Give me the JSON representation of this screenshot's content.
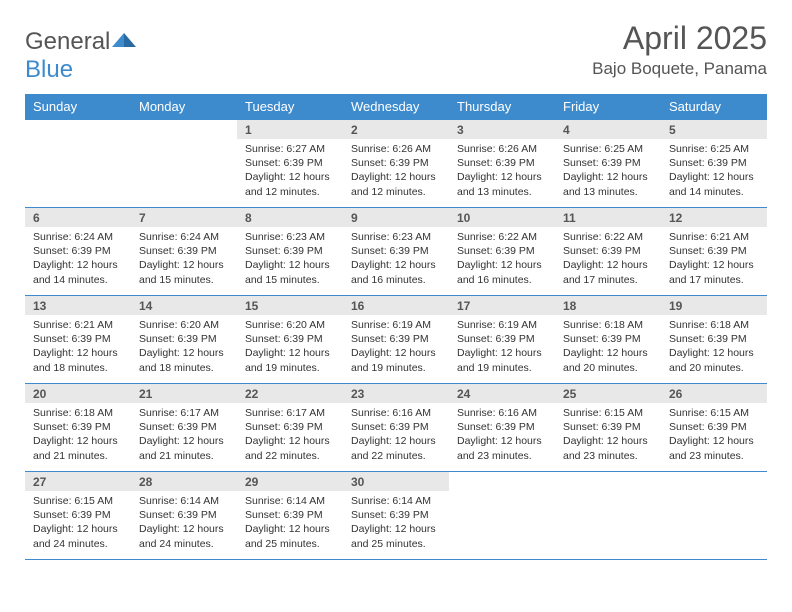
{
  "logo": {
    "text_gray": "General",
    "text_blue": "Blue"
  },
  "title": "April 2025",
  "location": "Bajo Boquete, Panama",
  "colors": {
    "accent": "#3d8bcd",
    "header_text": "#ffffff",
    "day_bg": "#e8e8e8",
    "body_text": "#333333",
    "title_text": "#555555",
    "background": "#ffffff"
  },
  "calendar": {
    "columns": [
      "Sunday",
      "Monday",
      "Tuesday",
      "Wednesday",
      "Thursday",
      "Friday",
      "Saturday"
    ],
    "leading_blanks": 2,
    "days": [
      {
        "n": 1,
        "sr": "6:27 AM",
        "ss": "6:39 PM",
        "dl": "12 hours and 12 minutes."
      },
      {
        "n": 2,
        "sr": "6:26 AM",
        "ss": "6:39 PM",
        "dl": "12 hours and 12 minutes."
      },
      {
        "n": 3,
        "sr": "6:26 AM",
        "ss": "6:39 PM",
        "dl": "12 hours and 13 minutes."
      },
      {
        "n": 4,
        "sr": "6:25 AM",
        "ss": "6:39 PM",
        "dl": "12 hours and 13 minutes."
      },
      {
        "n": 5,
        "sr": "6:25 AM",
        "ss": "6:39 PM",
        "dl": "12 hours and 14 minutes."
      },
      {
        "n": 6,
        "sr": "6:24 AM",
        "ss": "6:39 PM",
        "dl": "12 hours and 14 minutes."
      },
      {
        "n": 7,
        "sr": "6:24 AM",
        "ss": "6:39 PM",
        "dl": "12 hours and 15 minutes."
      },
      {
        "n": 8,
        "sr": "6:23 AM",
        "ss": "6:39 PM",
        "dl": "12 hours and 15 minutes."
      },
      {
        "n": 9,
        "sr": "6:23 AM",
        "ss": "6:39 PM",
        "dl": "12 hours and 16 minutes."
      },
      {
        "n": 10,
        "sr": "6:22 AM",
        "ss": "6:39 PM",
        "dl": "12 hours and 16 minutes."
      },
      {
        "n": 11,
        "sr": "6:22 AM",
        "ss": "6:39 PM",
        "dl": "12 hours and 17 minutes."
      },
      {
        "n": 12,
        "sr": "6:21 AM",
        "ss": "6:39 PM",
        "dl": "12 hours and 17 minutes."
      },
      {
        "n": 13,
        "sr": "6:21 AM",
        "ss": "6:39 PM",
        "dl": "12 hours and 18 minutes."
      },
      {
        "n": 14,
        "sr": "6:20 AM",
        "ss": "6:39 PM",
        "dl": "12 hours and 18 minutes."
      },
      {
        "n": 15,
        "sr": "6:20 AM",
        "ss": "6:39 PM",
        "dl": "12 hours and 19 minutes."
      },
      {
        "n": 16,
        "sr": "6:19 AM",
        "ss": "6:39 PM",
        "dl": "12 hours and 19 minutes."
      },
      {
        "n": 17,
        "sr": "6:19 AM",
        "ss": "6:39 PM",
        "dl": "12 hours and 19 minutes."
      },
      {
        "n": 18,
        "sr": "6:18 AM",
        "ss": "6:39 PM",
        "dl": "12 hours and 20 minutes."
      },
      {
        "n": 19,
        "sr": "6:18 AM",
        "ss": "6:39 PM",
        "dl": "12 hours and 20 minutes."
      },
      {
        "n": 20,
        "sr": "6:18 AM",
        "ss": "6:39 PM",
        "dl": "12 hours and 21 minutes."
      },
      {
        "n": 21,
        "sr": "6:17 AM",
        "ss": "6:39 PM",
        "dl": "12 hours and 21 minutes."
      },
      {
        "n": 22,
        "sr": "6:17 AM",
        "ss": "6:39 PM",
        "dl": "12 hours and 22 minutes."
      },
      {
        "n": 23,
        "sr": "6:16 AM",
        "ss": "6:39 PM",
        "dl": "12 hours and 22 minutes."
      },
      {
        "n": 24,
        "sr": "6:16 AM",
        "ss": "6:39 PM",
        "dl": "12 hours and 23 minutes."
      },
      {
        "n": 25,
        "sr": "6:15 AM",
        "ss": "6:39 PM",
        "dl": "12 hours and 23 minutes."
      },
      {
        "n": 26,
        "sr": "6:15 AM",
        "ss": "6:39 PM",
        "dl": "12 hours and 23 minutes."
      },
      {
        "n": 27,
        "sr": "6:15 AM",
        "ss": "6:39 PM",
        "dl": "12 hours and 24 minutes."
      },
      {
        "n": 28,
        "sr": "6:14 AM",
        "ss": "6:39 PM",
        "dl": "12 hours and 24 minutes."
      },
      {
        "n": 29,
        "sr": "6:14 AM",
        "ss": "6:39 PM",
        "dl": "12 hours and 25 minutes."
      },
      {
        "n": 30,
        "sr": "6:14 AM",
        "ss": "6:39 PM",
        "dl": "12 hours and 25 minutes."
      }
    ],
    "labels": {
      "sunrise": "Sunrise:",
      "sunset": "Sunset:",
      "daylight": "Daylight:"
    }
  }
}
